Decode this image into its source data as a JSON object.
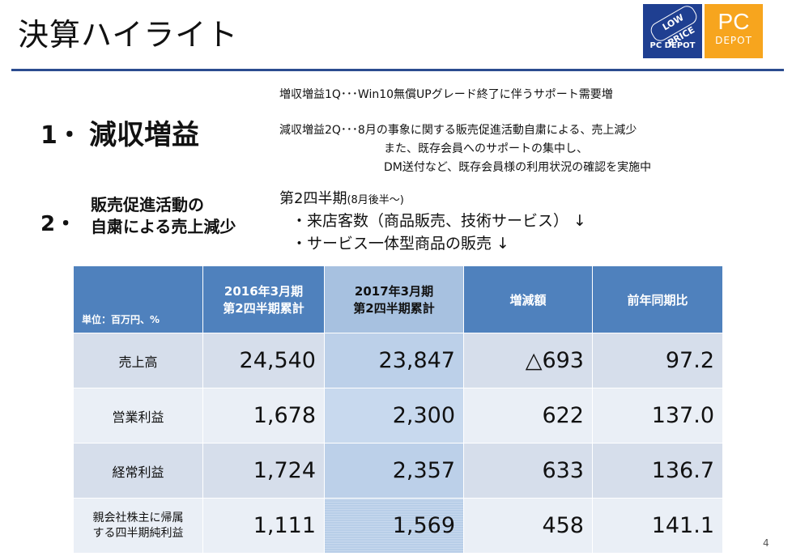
{
  "title": "決算ハイライト",
  "logos": {
    "low_price": "LOW PRICE",
    "pc_depot": "PC DEPOT",
    "pc": "PC",
    "depot": "DEPOT"
  },
  "notes": {
    "line1": "増収増益1Q･･･Win10無償UPグレード終了に伴うサポート需要増",
    "line2": "減収増益2Q･･･8月の事象に関する販売促進活動自粛による、売上減少",
    "line3": "また、既存会員へのサポートの集中し、",
    "line4": "DM送付など、既存会員様の利用状況の確認を実施中"
  },
  "section1": {
    "number": "1・",
    "heading": "減収増益"
  },
  "section2": {
    "number": "2・",
    "heading_line1": "販売促進活動の",
    "heading_line2": "自粛による売上減少",
    "period": "第2四半期",
    "period_note": "(8月後半～)",
    "bullet1": "・来店客数（商品販売、技術サービス） ↓",
    "bullet2": "・サービス一体型商品の販売  ↓"
  },
  "table": {
    "unit": "単位：百万円、%",
    "col1_line1": "2016年3月期",
    "col1_line2": "第2四半期累計",
    "col2_line1": "2017年3月期",
    "col2_line2": "第2四半期累計",
    "col3": "増減額",
    "col4": "前年同期比",
    "rows": [
      {
        "label": "売上高",
        "v2016": "24,540",
        "v2017": "23,847",
        "diff": "△693",
        "ratio": "97.2"
      },
      {
        "label": "営業利益",
        "v2016": "1,678",
        "v2017": "2,300",
        "diff": "622",
        "ratio": "137.0"
      },
      {
        "label": "経常利益",
        "v2016": "1,724",
        "v2017": "2,357",
        "diff": "633",
        "ratio": "136.7"
      },
      {
        "label_line1": "親会社株主に帰属",
        "label_line2": "する四半期純利益",
        "v2016": "1,111",
        "v2017": "1,569",
        "diff": "458",
        "ratio": "141.1"
      }
    ]
  },
  "page_number": "4"
}
